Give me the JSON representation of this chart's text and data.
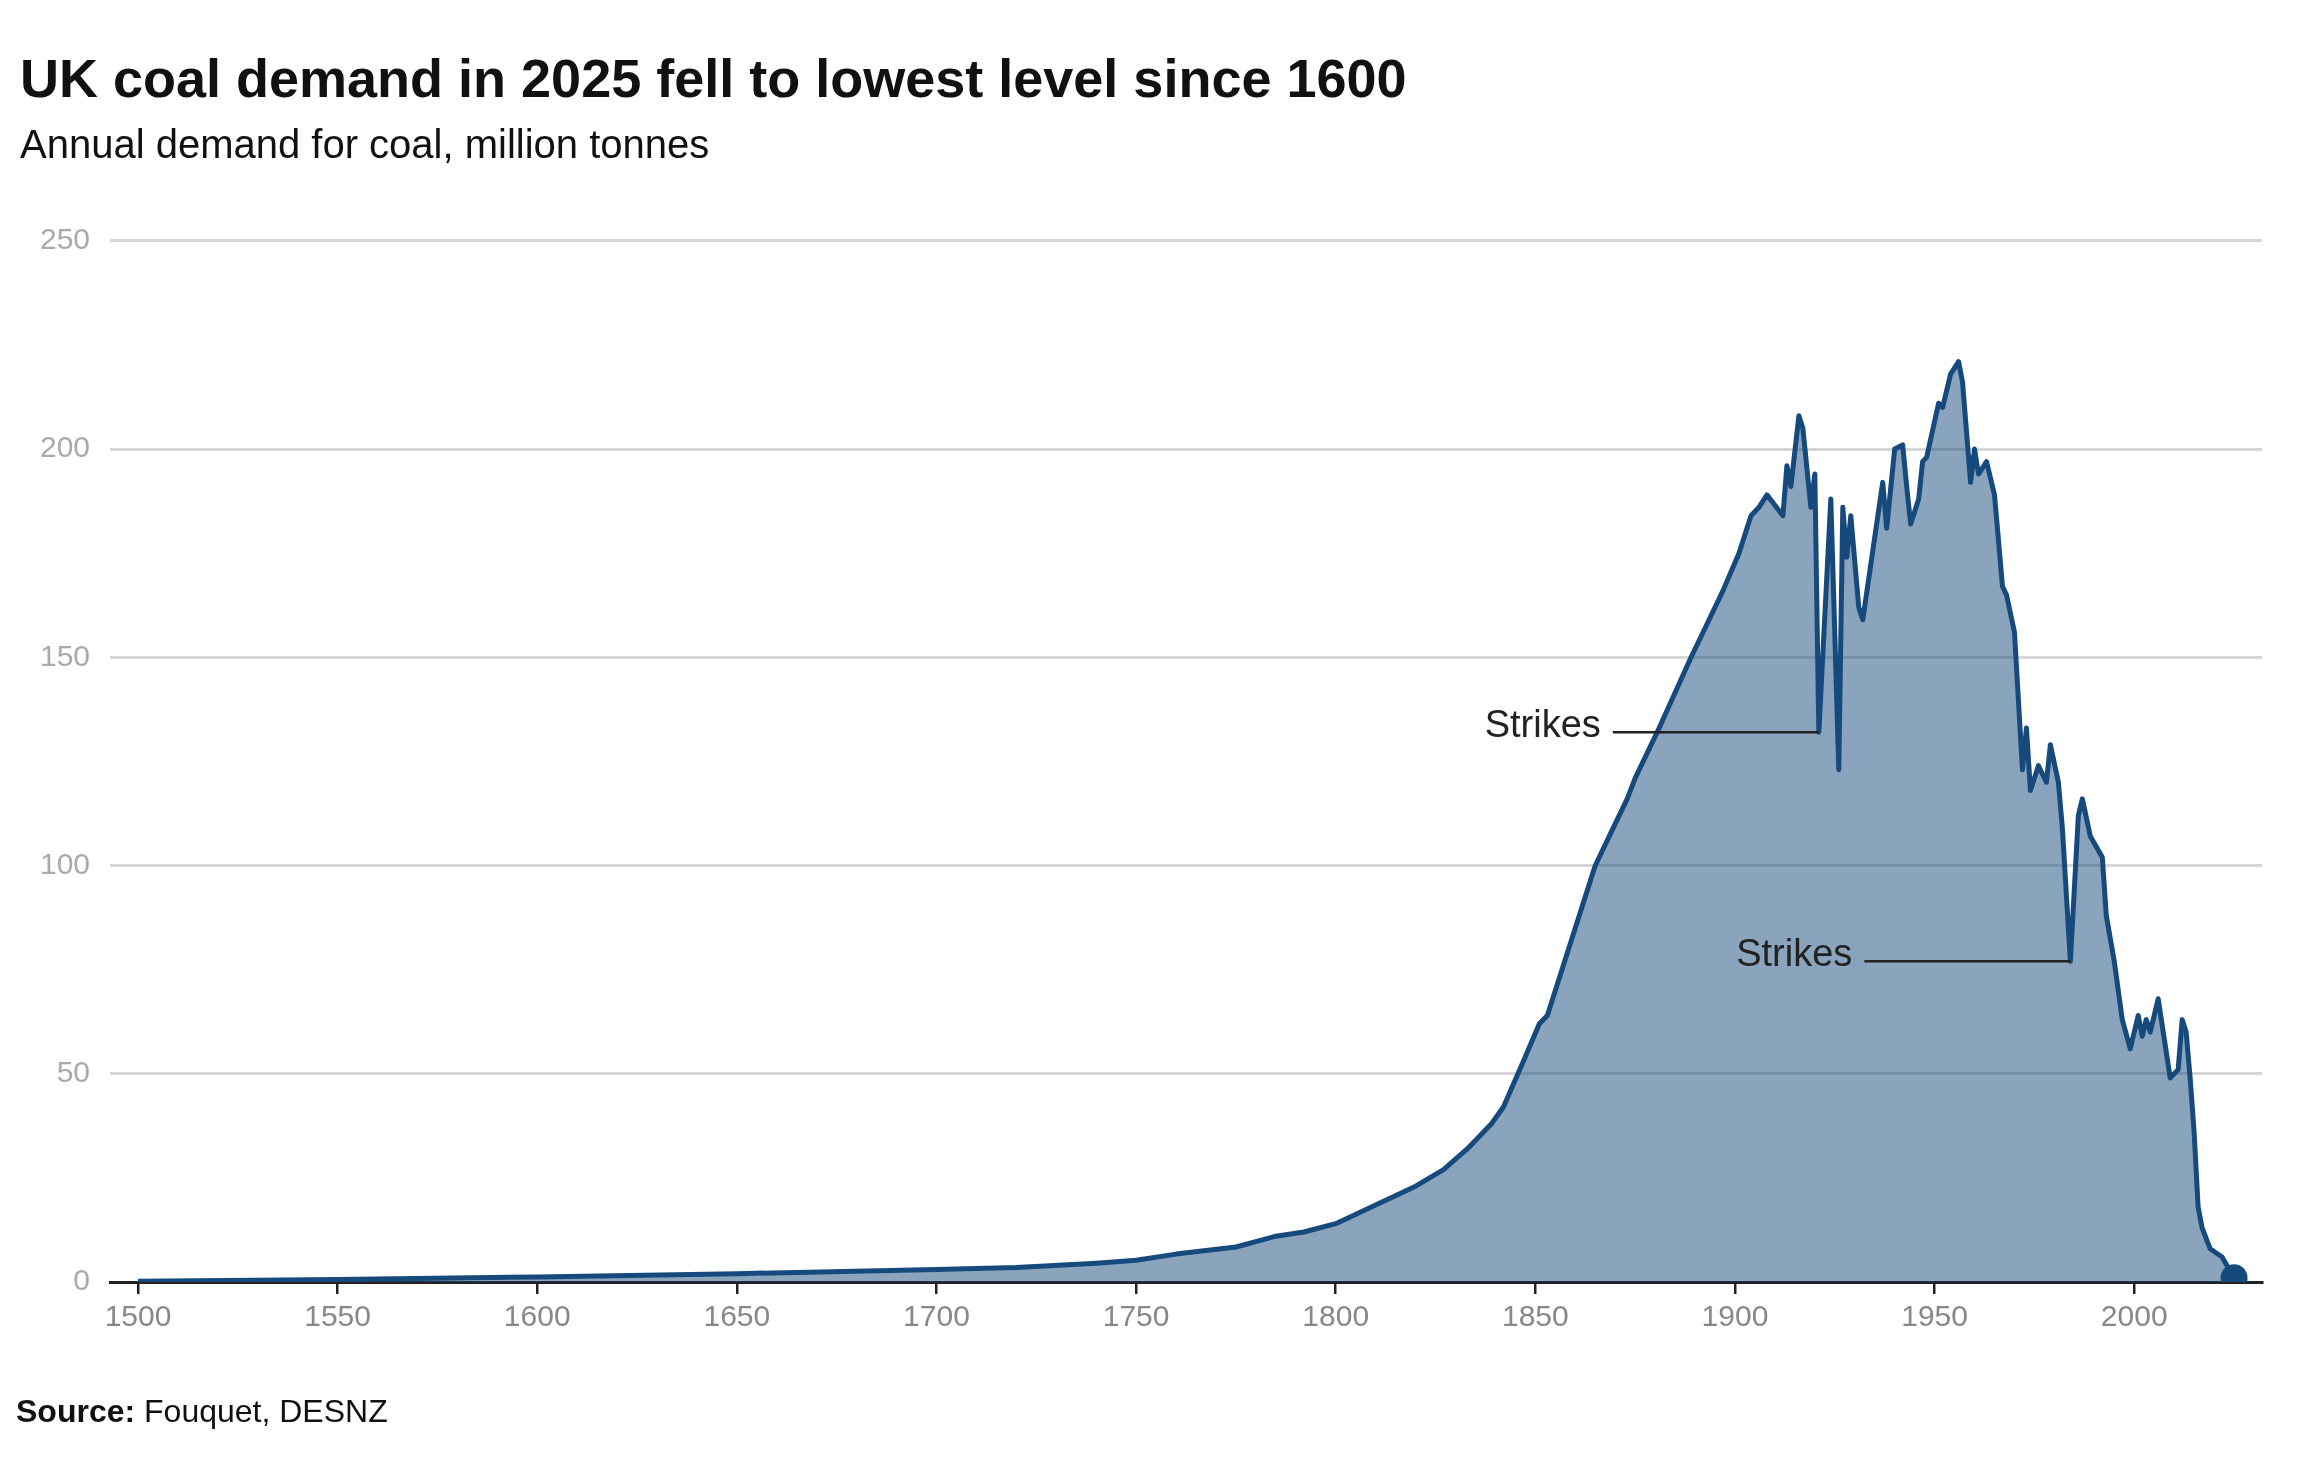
{
  "chart_data": {
    "type": "area",
    "title": "UK coal demand in 2025 fell to lowest level since 1600",
    "subtitle": "Annual demand for coal, million tonnes",
    "xlim": [
      1493,
      2032
    ],
    "xticks": [
      1500,
      1550,
      1600,
      1650,
      1700,
      1750,
      1800,
      1850,
      1900,
      1950,
      2000
    ],
    "ylim": [
      0,
      250
    ],
    "yticks": [
      0,
      50,
      100,
      150,
      200,
      250
    ],
    "grid": "y",
    "legend": false,
    "series": [
      {
        "color": "#174a7c",
        "x": [
          1500,
          1550,
          1600,
          1650,
          1700,
          1720,
          1740,
          1750,
          1760,
          1775,
          1785,
          1792,
          1800,
          1820,
          1827,
          1833,
          1839,
          1842,
          1847,
          1851,
          1853,
          1859,
          1862,
          1865,
          1869,
          1873,
          1875,
          1881,
          1889,
          1893,
          1897,
          1901,
          1903,
          1904,
          1906,
          1908,
          1912,
          1913,
          1914,
          1916,
          1917,
          1919,
          1920,
          1921,
          1924,
          1926,
          1927,
          1928,
          1929,
          1931,
          1932,
          1937,
          1938,
          1940,
          1942,
          1943,
          1944,
          1946,
          1947,
          1948,
          1951,
          1952,
          1954,
          1956,
          1957,
          1959,
          1960,
          1961,
          1963,
          1965,
          1967,
          1968,
          1970,
          1972,
          1973,
          1974,
          1976,
          1978,
          1979,
          1981,
          1982,
          1984,
          1986,
          1987,
          1989,
          1992,
          1993,
          1995,
          1997,
          1999,
          2001,
          2002,
          2003,
          2004,
          2006,
          2009,
          2011,
          2012,
          2013,
          2014,
          2015,
          2016,
          2017,
          2019,
          2022,
          2025
        ],
        "values": [
          0.2,
          0.6,
          1.2,
          2,
          3,
          3.5,
          4.5,
          5.2,
          6.7,
          8.4,
          11,
          12,
          14,
          23,
          27,
          32,
          38,
          42,
          53,
          62,
          64,
          82,
          91,
          100,
          108,
          116,
          121,
          133,
          150,
          158,
          166,
          175,
          181,
          184,
          186,
          189,
          184,
          196,
          191,
          208,
          205,
          186,
          194,
          132,
          188,
          123,
          186,
          174,
          184,
          162,
          159,
          192,
          181,
          200,
          201,
          191,
          182,
          188,
          197,
          198,
          211,
          210,
          218,
          221,
          216,
          192,
          200,
          194,
          197,
          189,
          167,
          165,
          156,
          123,
          133,
          118,
          124,
          120,
          129,
          120,
          109,
          77,
          112,
          116,
          107,
          102,
          88,
          77,
          63,
          56,
          64,
          59,
          63,
          60,
          68,
          49,
          51,
          63,
          60,
          49,
          36,
          18,
          13,
          8,
          6,
          1
        ]
      },
      {
        "type": "scatter",
        "color": "#174a7c",
        "marker": "circle",
        "x": [
          2025
        ],
        "values": [
          1
        ]
      }
    ],
    "annotations": [
      {
        "text": "Strikes",
        "x": 1921,
        "y": 132
      },
      {
        "text": "Strikes",
        "x": 1984,
        "y": 77
      },
      "Source: Fouquet, DESNZ"
    ]
  }
}
